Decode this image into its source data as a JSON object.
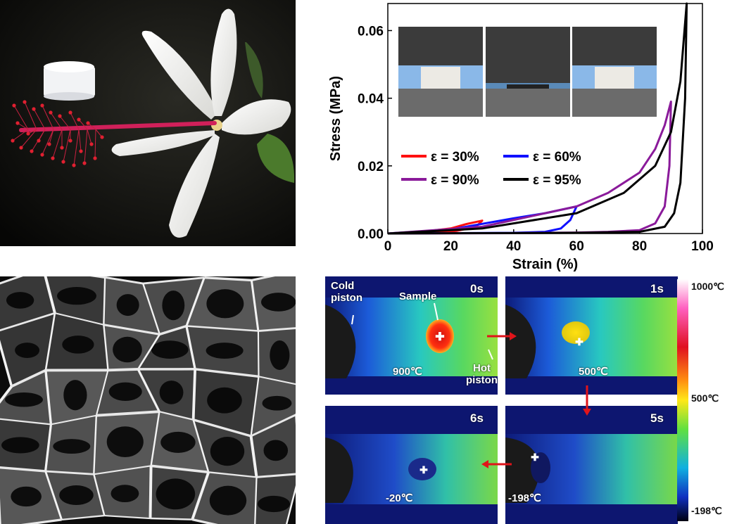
{
  "panel_b_chart": {
    "chart_data": {
      "type": "line",
      "xlabel": "Strain (%)",
      "ylabel": "Stress (MPa)",
      "xlim": [
        0,
        100
      ],
      "ylim": [
        0,
        0.068
      ],
      "xticks": [
        "0",
        "20",
        "40",
        "60",
        "80",
        "100"
      ],
      "yticks": [
        "0.00",
        "0.02",
        "0.04",
        "0.06"
      ],
      "legend_placement": "middle-left",
      "series": [
        {
          "name": "ε = 30%",
          "color": "#ff1010",
          "x": [
            0,
            10,
            20,
            25,
            30,
            28,
            22,
            15,
            8,
            0
          ],
          "y": [
            0,
            0.0004,
            0.0015,
            0.0028,
            0.0038,
            0.002,
            0.0008,
            0.0003,
            0.0001,
            0
          ]
        },
        {
          "name": "ε = 60%",
          "color": "#1010ff",
          "x": [
            0,
            20,
            40,
            50,
            60,
            58,
            55,
            50,
            40,
            20,
            0
          ],
          "y": [
            0,
            0.0012,
            0.0045,
            0.006,
            0.008,
            0.004,
            0.0015,
            0.0005,
            0.0002,
            0.0001,
            0
          ]
        },
        {
          "name": "ε = 90%",
          "color": "#8a1a9a",
          "x": [
            0,
            30,
            60,
            70,
            80,
            85,
            88,
            90,
            89.5,
            88,
            85,
            80,
            70,
            60,
            40,
            0
          ],
          "y": [
            0,
            0.002,
            0.008,
            0.012,
            0.018,
            0.025,
            0.032,
            0.039,
            0.02,
            0.008,
            0.003,
            0.001,
            0.0005,
            0.0003,
            0.0001,
            0
          ]
        },
        {
          "name": "ε = 95%",
          "color": "#000000",
          "x": [
            0,
            30,
            60,
            75,
            85,
            90,
            93,
            95,
            94.5,
            93,
            91,
            88,
            80,
            60,
            30,
            0
          ],
          "y": [
            0,
            0.0015,
            0.006,
            0.012,
            0.02,
            0.03,
            0.045,
            0.068,
            0.04,
            0.015,
            0.006,
            0.002,
            0.0005,
            0.0002,
            0.0001,
            0
          ]
        }
      ]
    }
  },
  "panel_d": {
    "frames": [
      {
        "time": "0s",
        "temp": "900℃"
      },
      {
        "time": "1s",
        "temp": "500℃"
      },
      {
        "time": "6s",
        "temp": "-20℃"
      },
      {
        "time": "5s",
        "temp": "-198℃"
      }
    ],
    "cold_piston": "Cold\npiston",
    "hot_piston": "Hot\npiston",
    "sample": "Sample",
    "scale": {
      "max": "1000℃",
      "mid": "500℃",
      "min": "-198℃"
    }
  }
}
